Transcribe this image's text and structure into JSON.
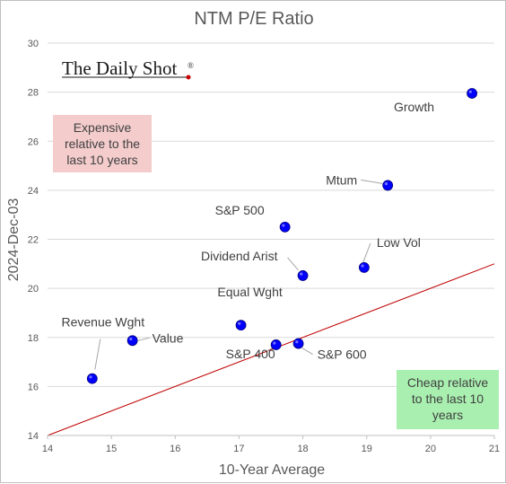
{
  "chart_data": {
    "type": "scatter",
    "title": "NTM P/E Ratio",
    "xlabel": "10-Year Average",
    "ylabel": "2024-Dec-03",
    "xlim": [
      14,
      21
    ],
    "ylim": [
      14,
      30
    ],
    "x_ticks": [
      "14",
      "15",
      "16",
      "17",
      "18",
      "19",
      "20",
      "21"
    ],
    "y_ticks": [
      "14",
      "16",
      "18",
      "20",
      "22",
      "24",
      "26",
      "28",
      "30"
    ],
    "grid": "horizontal",
    "points": [
      {
        "label": "Growth",
        "x": 20.65,
        "y": 27.95
      },
      {
        "label": "Mtum",
        "x": 19.33,
        "y": 24.2
      },
      {
        "label": "S&P 500",
        "x": 17.72,
        "y": 22.5
      },
      {
        "label": "Low Vol",
        "x": 18.96,
        "y": 20.85
      },
      {
        "label": "Dividend Arist",
        "x": 18.0,
        "y": 20.52
      },
      {
        "label": "Equal Wght",
        "x": 17.03,
        "y": 18.5
      },
      {
        "label": "Value",
        "x": 15.33,
        "y": 17.87
      },
      {
        "label": "Revenue Wght",
        "x": 14.7,
        "y": 16.32
      },
      {
        "label": "S&P 400",
        "x": 17.58,
        "y": 17.7
      },
      {
        "label": "S&P 600",
        "x": 17.93,
        "y": 17.75
      }
    ],
    "reference_line": {
      "type": "y=x",
      "color": "#c00000"
    },
    "marker_color": "#0000ff",
    "annotations": {
      "expensive": {
        "lines": [
          "Expensive",
          "relative to the",
          "last 10 years"
        ],
        "fill": "#f4cccc"
      },
      "cheap": {
        "lines": [
          "Cheap relative",
          "to the last 10",
          "years"
        ],
        "fill": "#a9f0b0"
      }
    }
  },
  "logo": {
    "text": "The Daily Shot",
    "mark": "®",
    "dot_color": "#cc0000"
  }
}
